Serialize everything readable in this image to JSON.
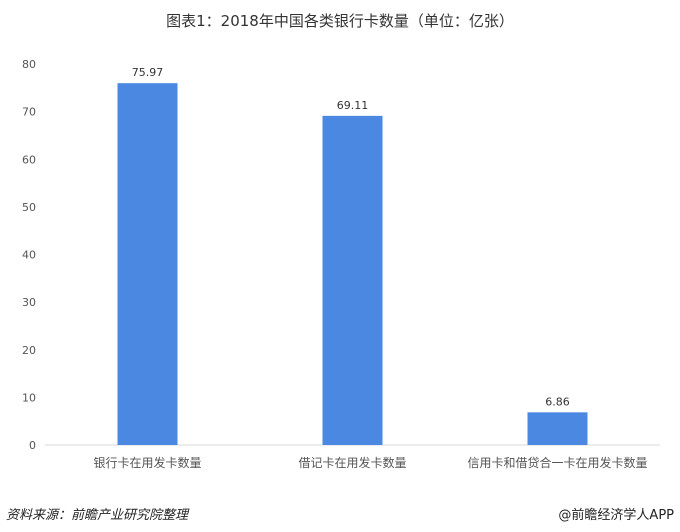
{
  "chart_data": {
    "type": "bar",
    "title": "图表1：2018年中国各类银行卡数量（单位：亿张）",
    "categories": [
      "银行卡在用发卡数量",
      "借记卡在用发卡数量",
      "信用卡和借贷合一卡在用发卡数量"
    ],
    "values": [
      75.97,
      69.11,
      6.86
    ],
    "data_labels": [
      "75.97",
      "69.11",
      "6.86"
    ],
    "ylim": [
      0,
      80
    ],
    "yticks": [
      "0",
      "10",
      "20",
      "30",
      "40",
      "50",
      "60",
      "70",
      "80"
    ],
    "grid": false,
    "bar_color": "#4a88e2"
  },
  "footer": {
    "source": "资料来源：前瞻产业研究院整理",
    "credit": "@前瞻经济学人APP"
  },
  "watermark": "前瞻产业研究院"
}
